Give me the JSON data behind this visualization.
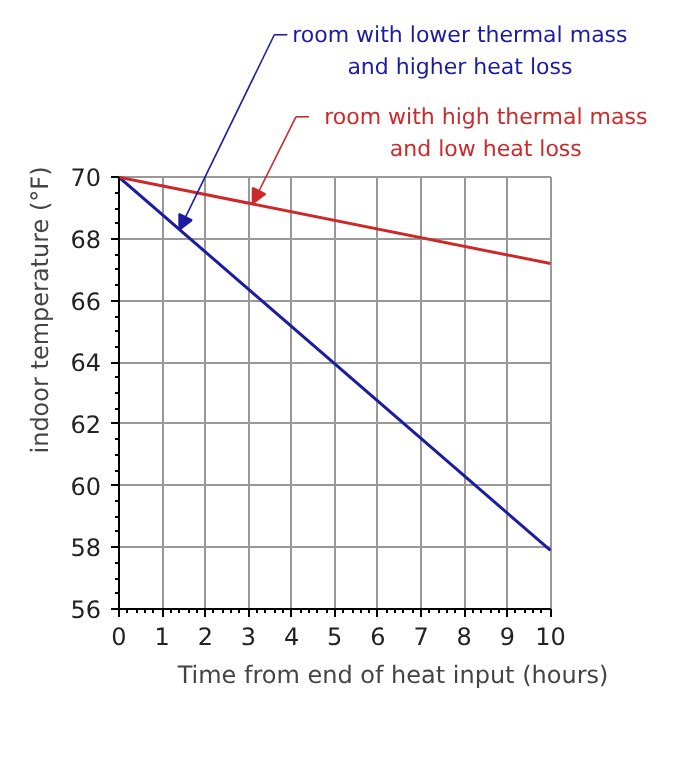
{
  "chart_data": {
    "type": "line",
    "xlabel": "Time from end of heat input (hours)",
    "ylabel": "indoor temperature (°F)",
    "x": [
      0,
      10
    ],
    "series": [
      {
        "color": "#1c1ca0",
        "values": [
          70,
          57.9
        ]
      },
      {
        "color": "#cc2a2a",
        "values": [
          70,
          67.2
        ]
      }
    ],
    "annotations": [
      {
        "text": "room with lower thermal mass\nand higher heat loss",
        "x": 1.4,
        "y": 68.3
      },
      {
        "text": "room with high thermal mass\nand low heat loss",
        "x": 3.1,
        "y": 69.15
      }
    ],
    "xlim": [
      0,
      10
    ],
    "ylim": [
      56,
      70
    ],
    "xticks": [
      0,
      1,
      2,
      3,
      4,
      5,
      6,
      7,
      8,
      9,
      10
    ],
    "yticks": [
      56,
      58,
      60,
      62,
      64,
      66,
      68,
      70
    ],
    "grid": true,
    "marker": "none",
    "line_style": "solid"
  }
}
